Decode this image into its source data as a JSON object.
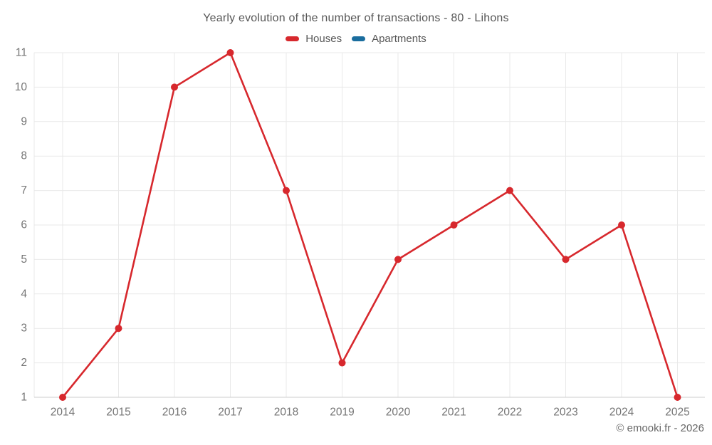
{
  "footer": {
    "copyright": "© emooki.fr - 2026"
  },
  "colors": {
    "background": "#ffffff",
    "grid": "#e9e9e9",
    "axis_line": "#cccccc",
    "tick_text": "#757575",
    "title_text": "#565656",
    "footer_text": "#666666",
    "houses": "#d7282d",
    "apartments": "#1a6d9e"
  },
  "chart_data": {
    "type": "line",
    "title": "Yearly evolution of the number of transactions - 80 - Lihons",
    "categories": [
      "2014",
      "2015",
      "2016",
      "2017",
      "2018",
      "2019",
      "2020",
      "2021",
      "2022",
      "2023",
      "2024",
      "2025"
    ],
    "series": [
      {
        "name": "Houses",
        "color": "#d7282d",
        "values": [
          1,
          3,
          10,
          11,
          7,
          2,
          5,
          6,
          7,
          5,
          6,
          1
        ]
      },
      {
        "name": "Apartments",
        "color": "#1a6d9e",
        "values": []
      }
    ],
    "xlabel": "",
    "ylabel": "",
    "ylim": [
      1,
      11
    ],
    "yticks": [
      1,
      2,
      3,
      4,
      5,
      6,
      7,
      8,
      9,
      10,
      11
    ],
    "grid": true,
    "legend_position": "top",
    "marker": "circle"
  }
}
